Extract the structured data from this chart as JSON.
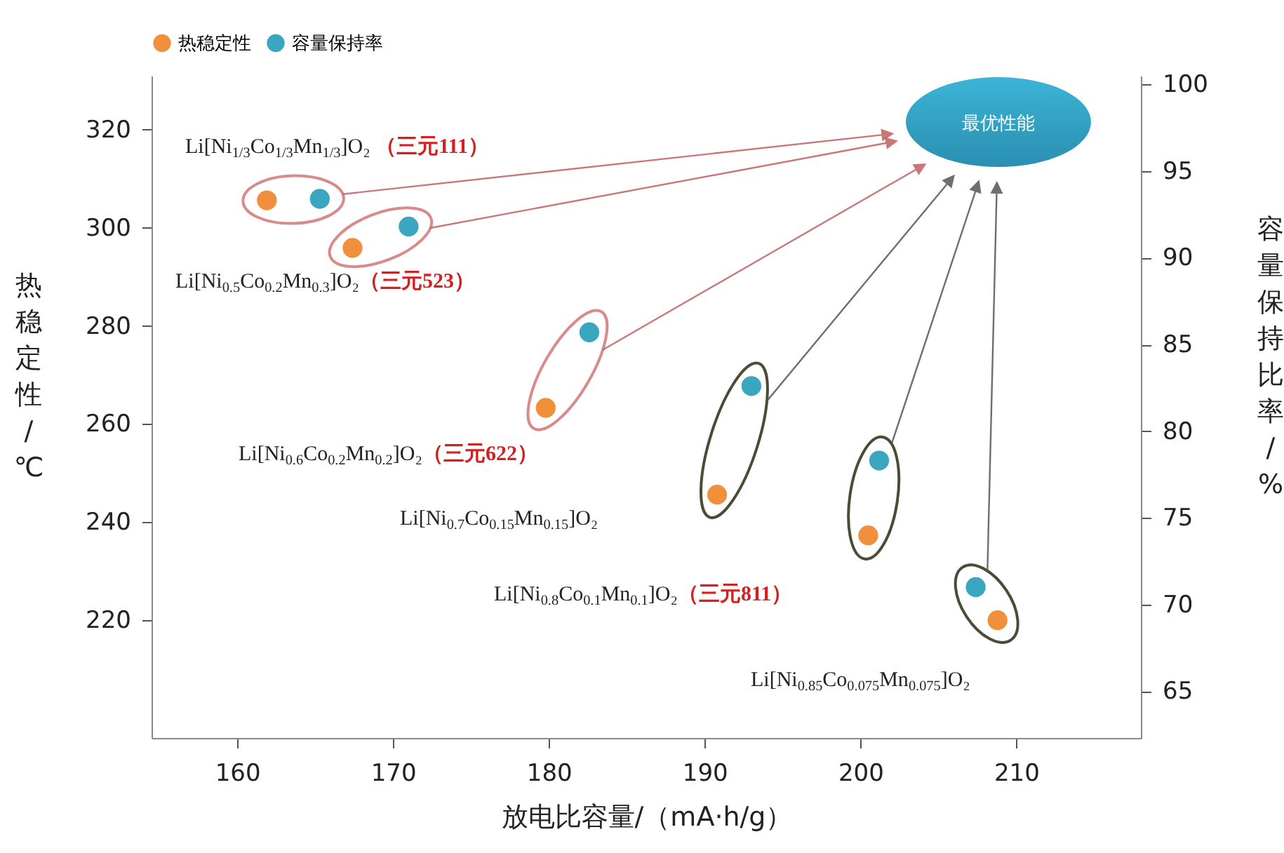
{
  "chart_data": {
    "type": "scatter",
    "xlabel": "放电比容量/（mA·h/g）",
    "ylabel": "热稳定性/℃",
    "y2label": "容量保持比率/%",
    "series": [
      {
        "name": "热稳定性",
        "color": "#f0903c",
        "x": [
          161.9,
          167.4,
          179.8,
          190.8,
          200.5,
          208.8
        ],
        "values": [
          305.6,
          295.9,
          263.3,
          245.6,
          237.3,
          220
        ]
      },
      {
        "name": "容量保持率",
        "axis": "y2",
        "color": "#3aa6c0",
        "x": [
          165.3,
          171.0,
          182.6,
          193.0,
          201.2,
          207.4
        ],
        "values": [
          93.4,
          91.8,
          85.7,
          82.6,
          78.3,
          71.0
        ]
      }
    ],
    "xlim": [
      154.5,
      218
    ],
    "xticks": [
      160,
      170,
      180,
      190,
      200,
      210
    ],
    "ylim": [
      196,
      331
    ],
    "yticks": [
      220,
      240,
      260,
      280,
      300,
      320
    ],
    "y2lim": [
      62.3,
      100.5
    ],
    "y2ticks": [
      65,
      70,
      75,
      80,
      85,
      90,
      95,
      100
    ],
    "annotations": [
      "Li[Ni$_{1/3}$Co$_{1/3}$Mn$_{1/3}$]O₂ （三元111）",
      "Li[Ni$_{0.5}$Co$_{0.2}$Mn$_{0.3}$]O₂（三元523）",
      "Li[Ni$_{0.6}$Co$_{0.2}$Mn$_{0.2}$]O₂（三元622）",
      "Li[Ni$_{0.7}$Co$_{0.15}$Mn$_{0.15}$]O₂",
      "Li[Ni$_{0.8}$Co$_{0.1}$Mn$_{0.1}$]O₂（三元811）",
      "Li[Ni$_{0.85}$Co$_{0.075}$Mn$_{0.075}$]O₂",
      "最优性能"
    ],
    "marker": "circle",
    "grid": false,
    "legend": "top"
  }
}
